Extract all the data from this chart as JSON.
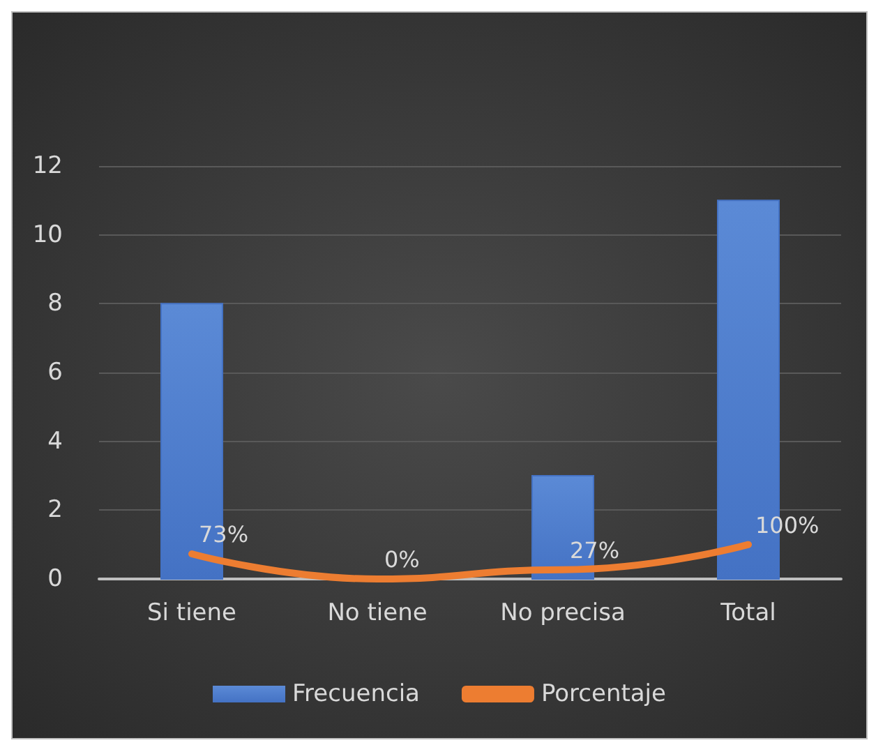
{
  "chart_data": {
    "type": "bar",
    "categories": [
      "Si tiene",
      "No tiene",
      "No precisa",
      "Total"
    ],
    "series": [
      {
        "name": "Frecuencia",
        "color": "#4472c4",
        "values": [
          8,
          0,
          3,
          11
        ]
      },
      {
        "name": "Porcentaje",
        "type": "line",
        "color": "#ed7d31",
        "values": [
          0.73,
          0,
          0.27,
          1
        ],
        "value_labels": [
          "73%",
          "0%",
          "27%",
          "100%"
        ]
      }
    ],
    "ylim": [
      0,
      12
    ],
    "yticks": [
      0,
      2,
      4,
      6,
      8,
      10,
      12
    ],
    "grid": "y",
    "legend": "bottom",
    "marker": "none"
  }
}
